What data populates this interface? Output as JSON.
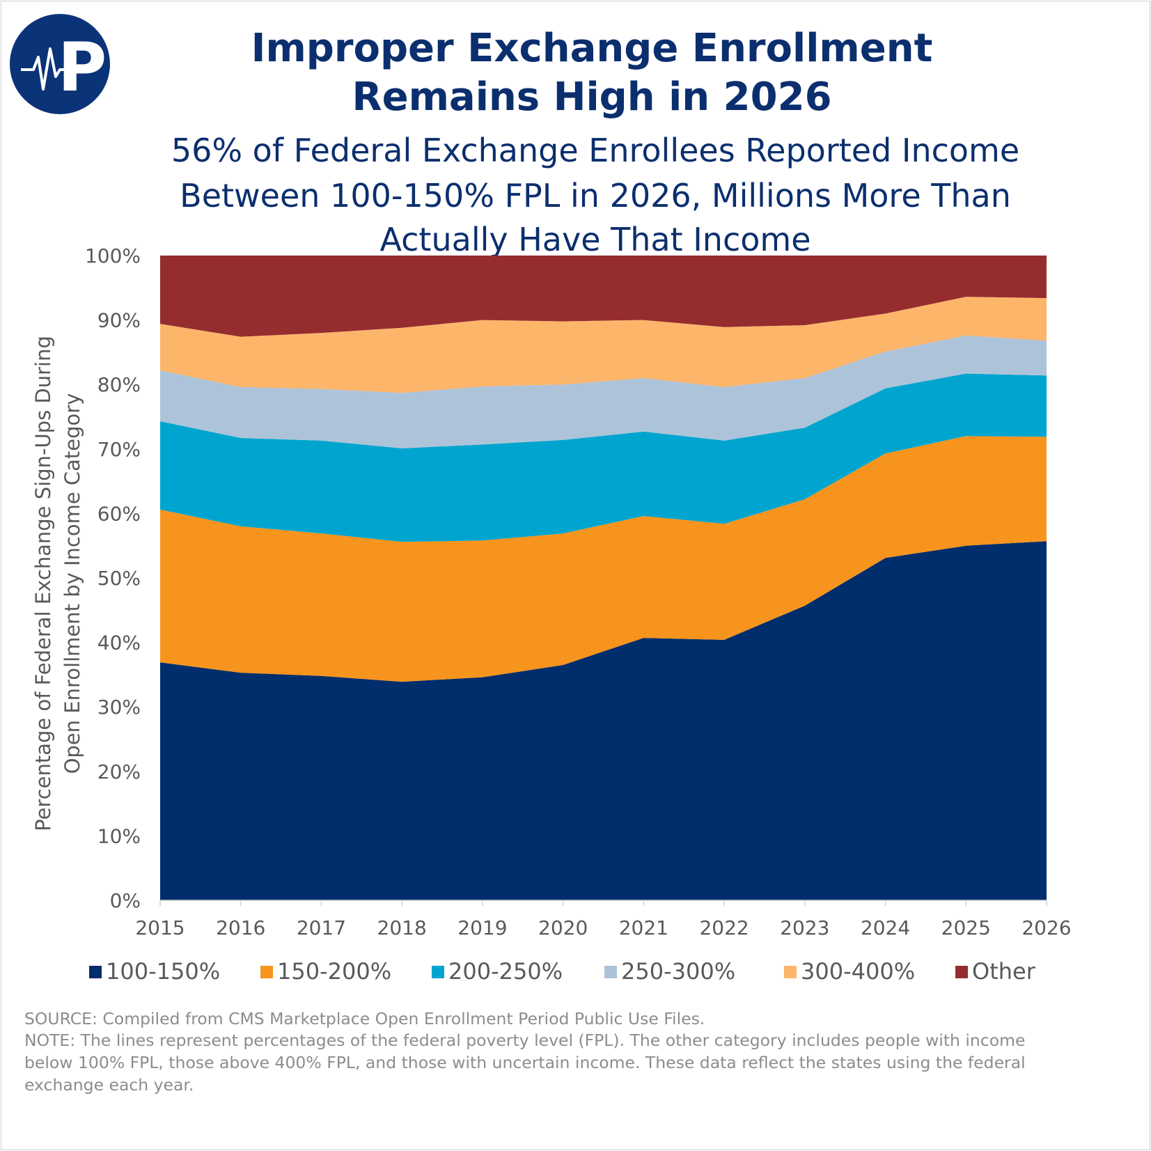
{
  "logo": {
    "letter": "P",
    "color": "#0b3478"
  },
  "chart_data": {
    "type": "area",
    "stacked": true,
    "title": "Improper Exchange Enrollment Remains High in 2026",
    "title_lines": [
      "Improper Exchange Enrollment",
      "Remains High in 2026"
    ],
    "subtitle_lines": [
      "56% of Federal Exchange Enrollees Reported Income",
      "Between 100-150% FPL in 2026, Millions More Than",
      "Actually Have That Income"
    ],
    "ylabel_lines": [
      "Percentage of Federal Exchange Sign-Ups During",
      "Open Enrollment by Income Category"
    ],
    "xlabel": "",
    "ylim": [
      0,
      100
    ],
    "yticks": [
      "0%",
      "10%",
      "20%",
      "30%",
      "40%",
      "50%",
      "60%",
      "70%",
      "80%",
      "90%",
      "100%"
    ],
    "x": [
      "2015",
      "2016",
      "2017",
      "2018",
      "2019",
      "2020",
      "2021",
      "2022",
      "2023",
      "2024",
      "2025",
      "2026"
    ],
    "grid": false,
    "legend_position": "bottom",
    "series": [
      {
        "name": "100-150%",
        "color": "#002d6b",
        "values": [
          36.9,
          35.3,
          34.8,
          33.9,
          34.6,
          36.5,
          40.7,
          40.4,
          45.7,
          53.1,
          55.0,
          55.7
        ]
      },
      {
        "name": "150-200%",
        "color": "#f7941d",
        "values": [
          23.7,
          22.7,
          22.1,
          21.7,
          21.2,
          20.4,
          18.9,
          18.0,
          16.5,
          16.2,
          17.0,
          16.2
        ]
      },
      {
        "name": "200-250%",
        "color": "#00a5cf",
        "values": [
          13.7,
          13.7,
          14.4,
          14.5,
          14.9,
          14.5,
          13.1,
          12.9,
          11.1,
          10.1,
          9.7,
          9.5
        ]
      },
      {
        "name": "250-300%",
        "color": "#adc3d9",
        "values": [
          7.9,
          7.9,
          8.0,
          8.6,
          9.0,
          8.6,
          8.3,
          8.3,
          7.7,
          5.7,
          5.9,
          5.4
        ]
      },
      {
        "name": "300-400%",
        "color": "#fdb56a",
        "values": [
          7.2,
          7.8,
          8.7,
          10.1,
          10.3,
          9.8,
          9.0,
          9.3,
          8.2,
          5.9,
          6.0,
          6.6
        ]
      },
      {
        "name": "Other",
        "color": "#952d2f",
        "values": [
          10.6,
          12.6,
          12.0,
          11.2,
          10.0,
          10.2,
          10.0,
          11.1,
          10.8,
          9.0,
          6.4,
          6.6
        ]
      }
    ]
  },
  "footer": {
    "lines": [
      "SOURCE: Compiled from CMS Marketplace Open Enrollment Period Public Use Files.",
      "NOTE: The lines represent percentages of the federal poverty level (FPL). The other category includes people with income",
      "below 100% FPL, those above 400% FPL, and those with uncertain income. These data reflect the states using the federal",
      "exchange each year."
    ]
  },
  "colors": {
    "title": "#0b2f6e",
    "axis_text": "#595959",
    "footer_text": "#8c8c8c"
  }
}
